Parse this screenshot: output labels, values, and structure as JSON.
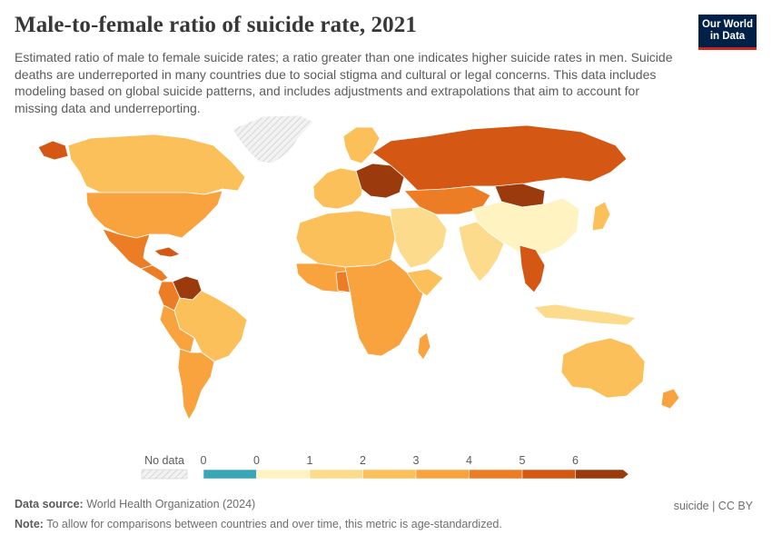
{
  "header": {
    "title": "Male-to-female ratio of suicide rate, 2021",
    "subtitle": "Estimated ratio of male to female suicide rates; a ratio greater than one indicates higher suicide rates in men. Suicide deaths are underreported in many countries due to social stigma and cultural or legal concerns. This data includes modeling based on global suicide patterns, and includes adjustments and extrapolations that aim to account for missing data and underreporting.",
    "logo_line1": "Our World",
    "logo_line2": "in Data"
  },
  "legend": {
    "no_data_label": "No data",
    "tick_labels": [
      "0",
      "0",
      "1",
      "2",
      "3",
      "4",
      "5",
      "6"
    ],
    "bins": [
      {
        "color": "#3aa7b8"
      },
      {
        "color": "#fff3c2"
      },
      {
        "color": "#fddb8c"
      },
      {
        "color": "#fcc05a"
      },
      {
        "color": "#f9a33f"
      },
      {
        "color": "#ec7d25"
      },
      {
        "color": "#d45713"
      },
      {
        "color": "#9b3a0c"
      }
    ]
  },
  "map_colors": {
    "no_data": "#e8e8e8",
    "c1": "#fff3c2",
    "c2": "#fddb8c",
    "c3": "#fcc05a",
    "c4": "#f9a33f",
    "c5": "#ec7d25",
    "c6": "#d45713",
    "c7": "#9b3a0c",
    "border": "#ffffff"
  },
  "footer": {
    "source_label": "Data source:",
    "source_text": "World Health Organization (2024)",
    "note_label": "Note:",
    "note_text": "To allow for comparisons between countries and over time, this metric is age-standardized.",
    "credit": "suicide | CC BY"
  }
}
